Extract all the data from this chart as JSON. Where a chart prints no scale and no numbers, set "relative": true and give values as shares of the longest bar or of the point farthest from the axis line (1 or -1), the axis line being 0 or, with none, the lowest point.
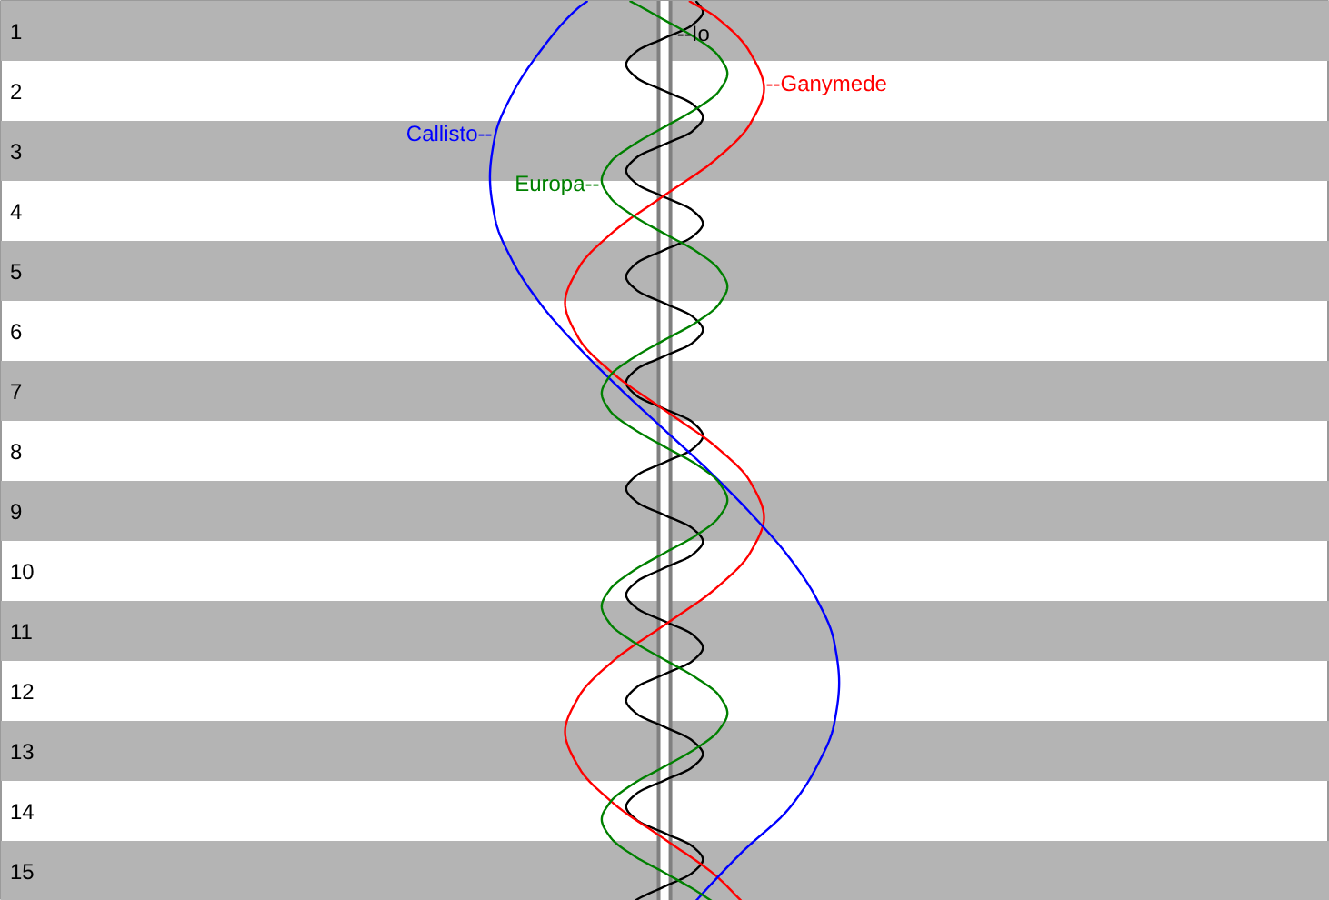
{
  "chart_data": {
    "type": "line",
    "orientation": "horizontal",
    "relative": true,
    "ylim": [
      15.5,
      0.5
    ],
    "yticks": [
      1,
      2,
      3,
      4,
      5,
      6,
      7,
      8,
      9,
      10,
      11,
      12,
      13,
      14,
      15
    ],
    "tick_labels": "y",
    "bands": [
      {
        "axis": "y",
        "from": 0.5,
        "to": 1.5,
        "color": "#b4b4b4"
      },
      {
        "axis": "y",
        "from": 2.5,
        "to": 3.5,
        "color": "#b4b4b4"
      },
      {
        "axis": "y",
        "from": 4.5,
        "to": 5.5,
        "color": "#b4b4b4"
      },
      {
        "axis": "y",
        "from": 6.5,
        "to": 7.5,
        "color": "#b4b4b4"
      },
      {
        "axis": "y",
        "from": 8.5,
        "to": 9.5,
        "color": "#b4b4b4"
      },
      {
        "axis": "y",
        "from": 10.5,
        "to": 11.5,
        "color": "#b4b4b4"
      },
      {
        "axis": "y",
        "from": 12.5,
        "to": 13.5,
        "color": "#b4b4b4"
      },
      {
        "axis": "y",
        "from": 14.5,
        "to": 15.5,
        "color": "#b4b4b4"
      },
      {
        "axis": "x",
        "from": 0.483,
        "to": 0.517,
        "color": "#ffffff"
      }
    ],
    "ref_lines": [
      {
        "axis": "x",
        "value": 0.483,
        "color": "#808080"
      },
      {
        "axis": "x",
        "value": 0.517,
        "color": "#808080"
      }
    ],
    "series": [
      {
        "name": "--Io",
        "color": "#000000",
        "x": [
          0.5,
          0.68,
          0.9,
          1.12,
          1.34,
          1.56,
          1.78,
          2.0,
          2.22,
          2.44,
          2.67,
          2.89,
          3.11,
          3.33,
          3.55,
          3.77,
          3.99,
          4.21,
          4.43,
          4.65,
          4.87,
          5.1,
          5.32,
          5.54,
          5.76,
          5.98,
          6.2,
          6.42,
          6.64,
          6.86,
          7.08,
          7.3,
          7.52,
          7.75,
          7.97,
          8.19,
          8.41,
          8.63,
          8.85,
          9.07,
          9.29,
          9.51,
          9.73,
          9.95,
          10.18,
          10.4,
          10.62,
          10.84,
          11.06,
          11.28,
          11.5,
          11.72,
          11.94,
          12.16,
          12.38,
          12.6,
          12.83,
          13.05,
          13.27,
          13.49,
          13.71,
          13.93,
          14.15,
          14.37,
          14.59,
          14.81,
          15.03,
          15.26,
          15.48,
          15.5
        ],
        "values": [
          0.59,
          0.61,
          0.58,
          0.5,
          0.42,
          0.39,
          0.42,
          0.5,
          0.58,
          0.61,
          0.58,
          0.5,
          0.42,
          0.39,
          0.42,
          0.5,
          0.58,
          0.61,
          0.58,
          0.5,
          0.42,
          0.39,
          0.42,
          0.5,
          0.58,
          0.61,
          0.58,
          0.5,
          0.42,
          0.39,
          0.42,
          0.5,
          0.58,
          0.61,
          0.58,
          0.5,
          0.42,
          0.39,
          0.42,
          0.5,
          0.58,
          0.61,
          0.58,
          0.5,
          0.42,
          0.39,
          0.42,
          0.5,
          0.58,
          0.61,
          0.58,
          0.5,
          0.42,
          0.39,
          0.42,
          0.5,
          0.58,
          0.61,
          0.58,
          0.5,
          0.42,
          0.39,
          0.42,
          0.5,
          0.58,
          0.61,
          0.58,
          0.5,
          0.42,
          0.415
        ]
      },
      {
        "name": "--Ganymede",
        "color": "#ff0000",
        "x": [
          0.5,
          0.76,
          1.36,
          1.96,
          2.55,
          3.15,
          3.74,
          4.34,
          4.94,
          5.53,
          6.13,
          6.72,
          7.32,
          7.92,
          8.51,
          9.11,
          9.7,
          10.3,
          10.9,
          11.49,
          12.09,
          12.68,
          13.28,
          13.88,
          14.47,
          15.07,
          15.5
        ],
        "values": [
          0.57,
          0.645,
          0.745,
          0.785,
          0.745,
          0.645,
          0.5,
          0.355,
          0.255,
          0.215,
          0.255,
          0.355,
          0.5,
          0.645,
          0.745,
          0.785,
          0.745,
          0.645,
          0.5,
          0.355,
          0.255,
          0.215,
          0.255,
          0.355,
          0.5,
          0.645,
          0.72
        ]
      },
      {
        "name": "Callisto--",
        "color": "#0000ff",
        "x": [
          0.5,
          0.63,
          1.33,
          2.04,
          2.74,
          3.44,
          4.14,
          4.84,
          5.55,
          6.25,
          6.95,
          7.65,
          8.35,
          9.06,
          9.76,
          10.46,
          11.16,
          11.86,
          12.57,
          13.27,
          13.97,
          14.67,
          15.37,
          15.5
        ],
        "values": [
          0.28,
          0.25,
          0.145,
          0.065,
          0.015,
          0,
          0.015,
          0.065,
          0.145,
          0.25,
          0.37,
          0.5,
          0.63,
          0.75,
          0.855,
          0.935,
          0.985,
          1,
          0.985,
          0.935,
          0.855,
          0.725,
          0.61,
          0.59
        ]
      },
      {
        "name": "Europa--",
        "color": "#008000",
        "x": [
          0.5,
          0.53,
          0.82,
          1.12,
          1.42,
          1.71,
          2.01,
          2.3,
          2.6,
          2.9,
          3.19,
          3.49,
          3.78,
          4.08,
          4.38,
          4.67,
          4.97,
          5.26,
          5.56,
          5.86,
          6.15,
          6.45,
          6.74,
          7.04,
          7.34,
          7.63,
          7.93,
          8.22,
          8.52,
          8.82,
          9.11,
          9.41,
          9.7,
          10.0,
          10.3,
          10.59,
          10.89,
          11.18,
          11.48,
          11.78,
          12.07,
          12.37,
          12.66,
          12.96,
          13.26,
          13.55,
          13.85,
          14.14,
          14.44,
          14.74,
          15.03,
          15.33,
          15.5
        ],
        "values": [
          0.4,
          0.41,
          0.5,
          0.59,
          0.655,
          0.68,
          0.655,
          0.59,
          0.5,
          0.41,
          0.345,
          0.32,
          0.345,
          0.41,
          0.5,
          0.59,
          0.655,
          0.68,
          0.655,
          0.59,
          0.5,
          0.41,
          0.345,
          0.32,
          0.345,
          0.41,
          0.5,
          0.59,
          0.655,
          0.68,
          0.655,
          0.59,
          0.5,
          0.41,
          0.345,
          0.32,
          0.345,
          0.41,
          0.5,
          0.59,
          0.655,
          0.68,
          0.655,
          0.59,
          0.5,
          0.41,
          0.345,
          0.32,
          0.345,
          0.41,
          0.5,
          0.59,
          0.635
        ]
      }
    ]
  }
}
